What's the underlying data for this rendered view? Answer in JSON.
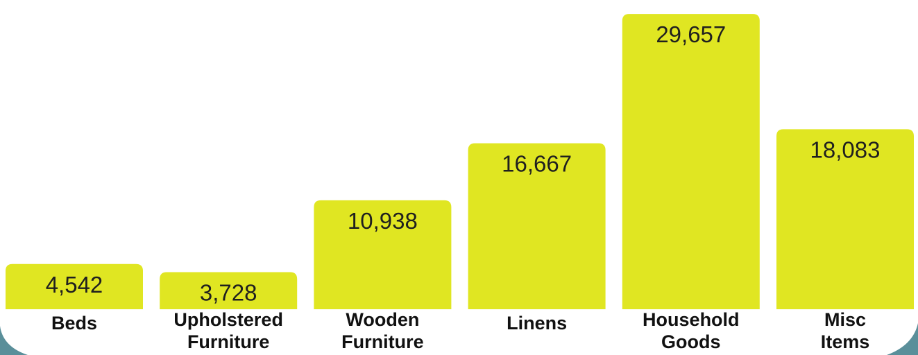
{
  "chart_data": {
    "type": "bar",
    "categories": [
      [
        "Beds"
      ],
      [
        "Upholstered",
        "Furniture"
      ],
      [
        "Wooden",
        "Furniture"
      ],
      [
        "Linens"
      ],
      [
        "Household",
        "Goods"
      ],
      [
        "Misc",
        "Items"
      ]
    ],
    "values": [
      4542,
      3728,
      10938,
      16667,
      29657,
      18083
    ],
    "value_labels": [
      "4,542",
      "3,728",
      "10,938",
      "16,667",
      "29,657",
      "18,083"
    ],
    "ylim": [
      0,
      30500
    ],
    "grid": false,
    "legend": "none",
    "colors": {
      "bar": "#e0e622",
      "background": "#ffffff",
      "accent_teal": "#5a8f9a"
    }
  }
}
